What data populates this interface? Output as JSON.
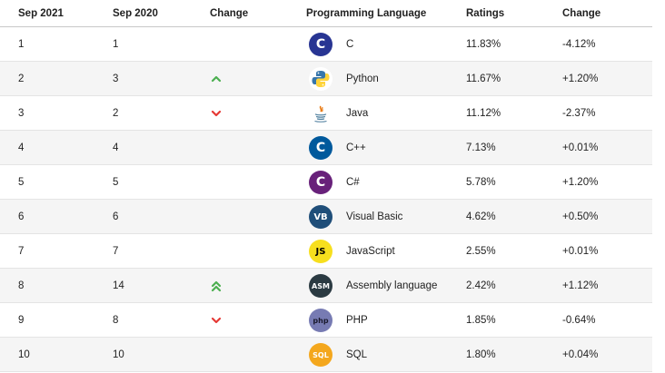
{
  "header": {
    "col1": "Sep 2021",
    "col2": "Sep 2020",
    "col3": "Change",
    "col4": "Programming Language",
    "col5": "Ratings",
    "col6": "Change"
  },
  "rows": [
    {
      "rank": "1",
      "prev": "1",
      "trend": "none",
      "icon": "c-logo-icon",
      "logo_text": "C",
      "logo_bg": "#283593",
      "logo_fg": "#ffffff",
      "language": "C",
      "rating": "11.83%",
      "change": "-4.12%"
    },
    {
      "rank": "2",
      "prev": "3",
      "trend": "up",
      "icon": "python-logo-icon",
      "logo_text": "",
      "logo_bg": "#ffffff",
      "logo_fg": "#3776ab",
      "language": "Python",
      "rating": "11.67%",
      "change": "+1.20%"
    },
    {
      "rank": "3",
      "prev": "2",
      "trend": "down",
      "icon": "java-logo-icon",
      "logo_text": "",
      "logo_bg": "#ffffff",
      "logo_fg": "#e76f00",
      "language": "Java",
      "rating": "11.12%",
      "change": "-2.37%"
    },
    {
      "rank": "4",
      "prev": "4",
      "trend": "none",
      "icon": "cpp-logo-icon",
      "logo_text": "C",
      "logo_bg": "#00599c",
      "logo_fg": "#ffffff",
      "language": "C++",
      "rating": "7.13%",
      "change": "+0.01%"
    },
    {
      "rank": "5",
      "prev": "5",
      "trend": "none",
      "icon": "csharp-logo-icon",
      "logo_text": "C",
      "logo_bg": "#68217a",
      "logo_fg": "#ffffff",
      "language": "C#",
      "rating": "5.78%",
      "change": "+1.20%"
    },
    {
      "rank": "6",
      "prev": "6",
      "trend": "none",
      "icon": "visual-basic-logo-icon",
      "logo_text": "VB",
      "logo_bg": "#1f4e79",
      "logo_fg": "#ffffff",
      "language": "Visual Basic",
      "rating": "4.62%",
      "change": "+0.50%"
    },
    {
      "rank": "7",
      "prev": "7",
      "trend": "none",
      "icon": "javascript-logo-icon",
      "logo_text": "JS",
      "logo_bg": "#f7df1e",
      "logo_fg": "#000000",
      "language": "JavaScript",
      "rating": "2.55%",
      "change": "+0.01%"
    },
    {
      "rank": "8",
      "prev": "14",
      "trend": "up2",
      "icon": "assembly-logo-icon",
      "logo_text": "ASM",
      "logo_bg": "#2b3a42",
      "logo_fg": "#ffffff",
      "language": "Assembly language",
      "rating": "2.42%",
      "change": "+1.12%"
    },
    {
      "rank": "9",
      "prev": "8",
      "trend": "down",
      "icon": "php-logo-icon",
      "logo_text": "php",
      "logo_bg": "#777bb3",
      "logo_fg": "#1a1a2e",
      "language": "PHP",
      "rating": "1.85%",
      "change": "-0.64%"
    },
    {
      "rank": "10",
      "prev": "10",
      "trend": "none",
      "icon": "sql-logo-icon",
      "logo_text": "SQL",
      "logo_bg": "#f4a71d",
      "logo_fg": "#ffffff",
      "language": "SQL",
      "rating": "1.80%",
      "change": "+0.04%"
    }
  ],
  "colors": {
    "up": "#4caf50",
    "down": "#e53935"
  }
}
